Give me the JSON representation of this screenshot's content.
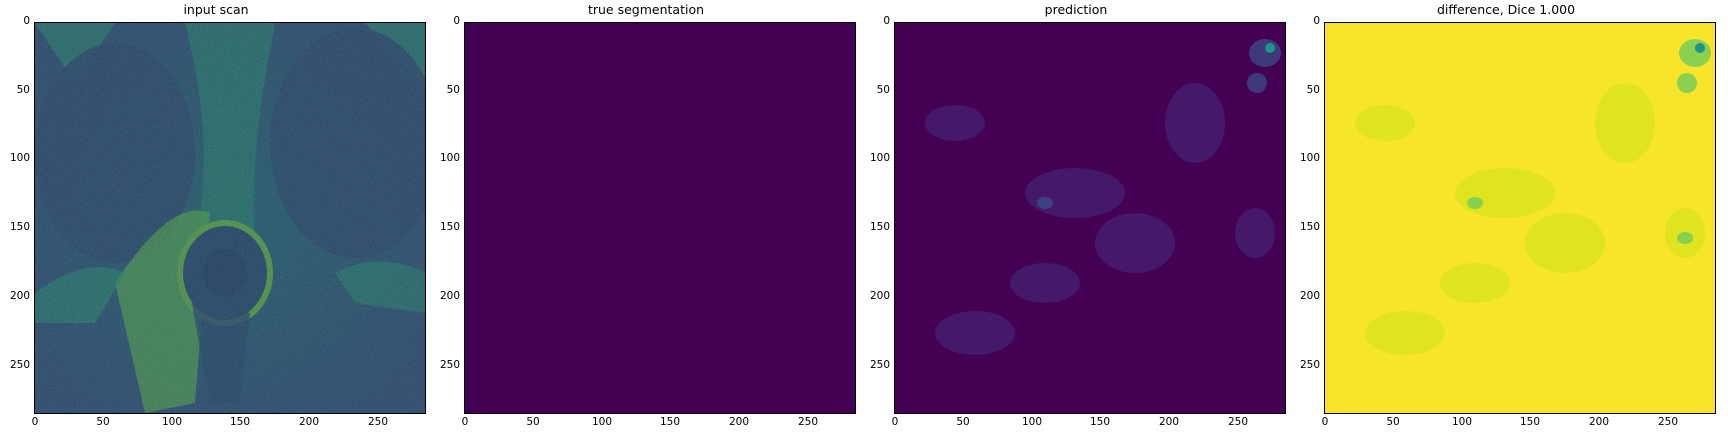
{
  "figure": {
    "panels": [
      {
        "id": "input",
        "title": "input scan",
        "fill": "#3b5d8f"
      },
      {
        "id": "truth",
        "title": "true segmentation",
        "fill": "#440154"
      },
      {
        "id": "pred",
        "title": "prediction",
        "fill": "#440154"
      },
      {
        "id": "diff",
        "title": "difference, Dice 1.000",
        "fill": "#f6e52a"
      }
    ],
    "ticks": [
      "0",
      "50",
      "100",
      "150",
      "200",
      "250"
    ],
    "colors": {
      "viridis_low": "#440154",
      "viridis_mid": "#21918c",
      "viridis_high": "#fde725"
    }
  },
  "chart_data": [
    {
      "type": "heatmap",
      "title": "input scan",
      "xlim": [
        0,
        256
      ],
      "ylim": [
        256,
        0
      ]
    },
    {
      "type": "heatmap",
      "title": "true segmentation",
      "xlim": [
        0,
        256
      ],
      "ylim": [
        256,
        0
      ]
    },
    {
      "type": "heatmap",
      "title": "prediction",
      "xlim": [
        0,
        256
      ],
      "ylim": [
        256,
        0
      ]
    },
    {
      "type": "heatmap",
      "title": "difference, Dice 1.000",
      "xlim": [
        0,
        256
      ],
      "ylim": [
        256,
        0
      ]
    }
  ]
}
